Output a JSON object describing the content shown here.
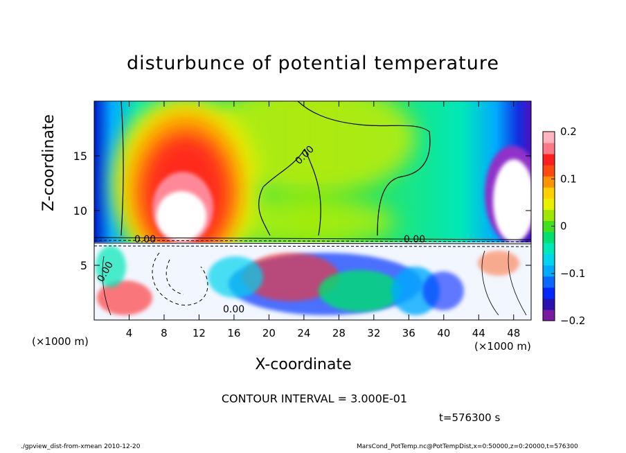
{
  "chart_data": {
    "type": "heatmap",
    "title": "disturbunce of potential temperature",
    "xlabel": "X-coordinate",
    "ylabel": "Z-coordinate",
    "x_unit_label": "(×1000 m)",
    "xlim": [
      0,
      50
    ],
    "ylim": [
      0,
      20
    ],
    "x_ticks": [
      4,
      8,
      12,
      16,
      20,
      24,
      28,
      32,
      36,
      40,
      44,
      48
    ],
    "y_ticks": [
      5,
      10,
      15
    ],
    "colorbar": {
      "range": [
        -0.2,
        0.2
      ],
      "ticks": [
        {
          "value": 0.2,
          "label": "0.2"
        },
        {
          "value": 0.1,
          "label": "0.1"
        },
        {
          "value": 0,
          "label": "0"
        },
        {
          "value": -0.1,
          "label": "−0.1"
        },
        {
          "value": -0.2,
          "label": "−0.2"
        }
      ],
      "colors": [
        "#7a1aa0",
        "#2a10b0",
        "#0028ff",
        "#0a68ff",
        "#00aaff",
        "#00d4ee",
        "#00e8b8",
        "#00e070",
        "#40e020",
        "#9ee800",
        "#e8f000",
        "#ffd000",
        "#ff9400",
        "#ff4a10",
        "#ff1e1e",
        "#ff7888",
        "#ffb4be"
      ]
    },
    "contour_labels": [
      "0.00",
      "0.00",
      "0.00",
      "0.00",
      "0.00"
    ],
    "contour_interval_text": "CONTOUR INTERVAL = 3.000E-01",
    "time_text": "t=576300 s"
  },
  "footer": {
    "left": "./gpview_dist-from-xmean   2010-12-20",
    "right": "MarsCond_PotTemp.nc@PotTempDist,x=0:50000,z=0:20000,t=576300"
  }
}
